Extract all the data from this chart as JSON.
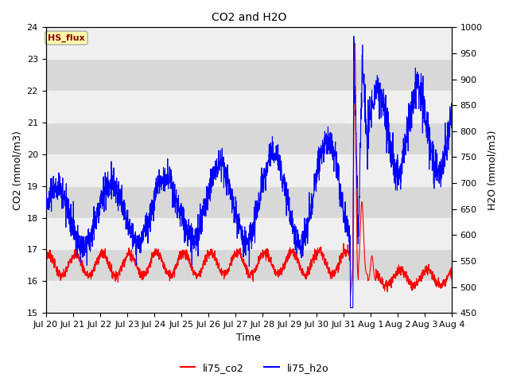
{
  "title": "CO2 and H2O",
  "xlabel": "Time",
  "ylabel_left": "CO2 (mmol/m3)",
  "ylabel_right": "H2O (mmol/m3)",
  "ylim_left": [
    15.0,
    24.0
  ],
  "ylim_right": [
    450,
    1000
  ],
  "yticks_left": [
    15.0,
    16.0,
    17.0,
    18.0,
    19.0,
    20.0,
    21.0,
    22.0,
    23.0,
    24.0
  ],
  "yticks_right": [
    450,
    500,
    550,
    600,
    650,
    700,
    750,
    800,
    850,
    900,
    950,
    1000
  ],
  "xtick_labels": [
    "Jul 20",
    "Jul 21",
    "Jul 22",
    "Jul 23",
    "Jul 24",
    "Jul 25",
    "Jul 26",
    "Jul 27",
    "Jul 28",
    "Jul 29",
    "Jul 30",
    "Jul 31",
    "Aug 1",
    "Aug 2",
    "Aug 3",
    "Aug 4"
  ],
  "legend_labels": [
    "li75_co2",
    "li75_h2o"
  ],
  "legend_colors": [
    "red",
    "blue"
  ],
  "band_color_dark": "#d8d8d8",
  "band_color_light": "#efefef",
  "annotation_text": "HS_flux",
  "annotation_color": "#8b0000",
  "annotation_bg": "#ffffaa",
  "annotation_edge": "#aaaaaa",
  "background_color": "#d8d8d8"
}
